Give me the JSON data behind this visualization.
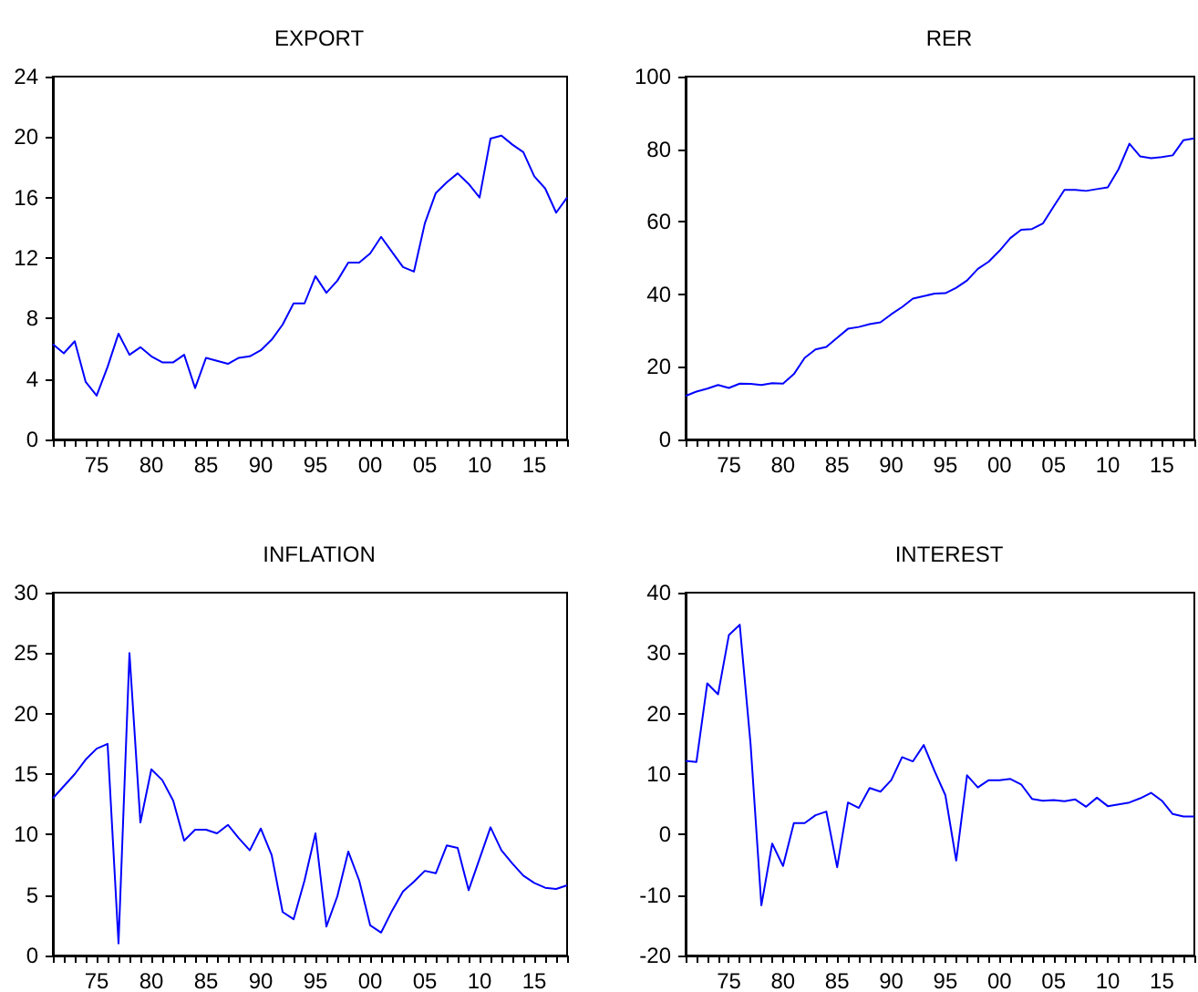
{
  "chart_data": [
    {
      "type": "line",
      "title": "EXPORT",
      "marker": "none",
      "xlim": [
        1971,
        2018
      ],
      "ylim": [
        0,
        24
      ],
      "yticks": [
        0,
        4,
        8,
        12,
        16,
        20,
        24
      ],
      "xticks": [
        {
          "value": 1971,
          "label": null
        },
        {
          "value": 1972,
          "label": null
        },
        {
          "value": 1973,
          "label": null
        },
        {
          "value": 1974,
          "label": null
        },
        {
          "value": 1975,
          "label": "75"
        },
        {
          "value": 1976,
          "label": null
        },
        {
          "value": 1977,
          "label": null
        },
        {
          "value": 1978,
          "label": null
        },
        {
          "value": 1979,
          "label": null
        },
        {
          "value": 1980,
          "label": "80"
        },
        {
          "value": 1981,
          "label": null
        },
        {
          "value": 1982,
          "label": null
        },
        {
          "value": 1983,
          "label": null
        },
        {
          "value": 1984,
          "label": null
        },
        {
          "value": 1985,
          "label": "85"
        },
        {
          "value": 1986,
          "label": null
        },
        {
          "value": 1987,
          "label": null
        },
        {
          "value": 1988,
          "label": null
        },
        {
          "value": 1989,
          "label": null
        },
        {
          "value": 1990,
          "label": "90"
        },
        {
          "value": 1991,
          "label": null
        },
        {
          "value": 1992,
          "label": null
        },
        {
          "value": 1993,
          "label": null
        },
        {
          "value": 1994,
          "label": null
        },
        {
          "value": 1995,
          "label": "95"
        },
        {
          "value": 1996,
          "label": null
        },
        {
          "value": 1997,
          "label": null
        },
        {
          "value": 1998,
          "label": null
        },
        {
          "value": 1999,
          "label": null
        },
        {
          "value": 2000,
          "label": "00"
        },
        {
          "value": 2001,
          "label": null
        },
        {
          "value": 2002,
          "label": null
        },
        {
          "value": 2003,
          "label": null
        },
        {
          "value": 2004,
          "label": null
        },
        {
          "value": 2005,
          "label": "05"
        },
        {
          "value": 2006,
          "label": null
        },
        {
          "value": 2007,
          "label": null
        },
        {
          "value": 2008,
          "label": null
        },
        {
          "value": 2009,
          "label": null
        },
        {
          "value": 2010,
          "label": "10"
        },
        {
          "value": 2011,
          "label": null
        },
        {
          "value": 2012,
          "label": null
        },
        {
          "value": 2013,
          "label": null
        },
        {
          "value": 2014,
          "label": null
        },
        {
          "value": 2015,
          "label": "15"
        },
        {
          "value": 2016,
          "label": null
        },
        {
          "value": 2017,
          "label": null
        },
        {
          "value": 2018,
          "label": null
        }
      ],
      "x": [
        1971,
        1972,
        1973,
        1974,
        1975,
        1976,
        1977,
        1978,
        1979,
        1980,
        1981,
        1982,
        1983,
        1984,
        1985,
        1986,
        1987,
        1988,
        1989,
        1990,
        1991,
        1992,
        1993,
        1994,
        1995,
        1996,
        1997,
        1998,
        1999,
        2000,
        2001,
        2002,
        2003,
        2004,
        2005,
        2006,
        2007,
        2008,
        2009,
        2010,
        2011,
        2012,
        2013,
        2014,
        2015,
        2016,
        2017,
        2018
      ],
      "series": [
        {
          "color": "#0000ff",
          "values": [
            6.3,
            5.7,
            6.5,
            3.8,
            2.9,
            4.8,
            7.0,
            5.6,
            6.1,
            5.5,
            5.1,
            5.1,
            5.6,
            3.4,
            5.4,
            5.2,
            5.0,
            5.4,
            5.5,
            5.9,
            6.6,
            7.6,
            9.0,
            9.0,
            10.8,
            9.7,
            10.5,
            11.7,
            11.7,
            12.3,
            13.4,
            12.4,
            11.4,
            11.1,
            14.3,
            16.3,
            17.0,
            17.6,
            16.9,
            16.0,
            19.9,
            20.1,
            19.5,
            19.0,
            17.4,
            16.6,
            15.0,
            16.0
          ]
        }
      ]
    },
    {
      "type": "line",
      "title": "RER",
      "marker": "none",
      "xlim": [
        1971,
        2018
      ],
      "ylim": [
        0,
        100
      ],
      "yticks": [
        0,
        20,
        40,
        60,
        80,
        100
      ],
      "xticks": [
        {
          "value": 1971,
          "label": null
        },
        {
          "value": 1972,
          "label": null
        },
        {
          "value": 1973,
          "label": null
        },
        {
          "value": 1974,
          "label": null
        },
        {
          "value": 1975,
          "label": "75"
        },
        {
          "value": 1976,
          "label": null
        },
        {
          "value": 1977,
          "label": null
        },
        {
          "value": 1978,
          "label": null
        },
        {
          "value": 1979,
          "label": null
        },
        {
          "value": 1980,
          "label": "80"
        },
        {
          "value": 1981,
          "label": null
        },
        {
          "value": 1982,
          "label": null
        },
        {
          "value": 1983,
          "label": null
        },
        {
          "value": 1984,
          "label": null
        },
        {
          "value": 1985,
          "label": "85"
        },
        {
          "value": 1986,
          "label": null
        },
        {
          "value": 1987,
          "label": null
        },
        {
          "value": 1988,
          "label": null
        },
        {
          "value": 1989,
          "label": null
        },
        {
          "value": 1990,
          "label": "90"
        },
        {
          "value": 1991,
          "label": null
        },
        {
          "value": 1992,
          "label": null
        },
        {
          "value": 1993,
          "label": null
        },
        {
          "value": 1994,
          "label": null
        },
        {
          "value": 1995,
          "label": "95"
        },
        {
          "value": 1996,
          "label": null
        },
        {
          "value": 1997,
          "label": null
        },
        {
          "value": 1998,
          "label": null
        },
        {
          "value": 1999,
          "label": null
        },
        {
          "value": 2000,
          "label": "00"
        },
        {
          "value": 2001,
          "label": null
        },
        {
          "value": 2002,
          "label": null
        },
        {
          "value": 2003,
          "label": null
        },
        {
          "value": 2004,
          "label": null
        },
        {
          "value": 2005,
          "label": "05"
        },
        {
          "value": 2006,
          "label": null
        },
        {
          "value": 2007,
          "label": null
        },
        {
          "value": 2008,
          "label": null
        },
        {
          "value": 2009,
          "label": null
        },
        {
          "value": 2010,
          "label": "10"
        },
        {
          "value": 2011,
          "label": null
        },
        {
          "value": 2012,
          "label": null
        },
        {
          "value": 2013,
          "label": null
        },
        {
          "value": 2014,
          "label": null
        },
        {
          "value": 2015,
          "label": "15"
        },
        {
          "value": 2016,
          "label": null
        },
        {
          "value": 2017,
          "label": null
        },
        {
          "value": 2018,
          "label": null
        }
      ],
      "x": [
        1971,
        1972,
        1973,
        1974,
        1975,
        1976,
        1977,
        1978,
        1979,
        1980,
        1981,
        1982,
        1983,
        1984,
        1985,
        1986,
        1987,
        1988,
        1989,
        1990,
        1991,
        1992,
        1993,
        1994,
        1995,
        1996,
        1997,
        1998,
        1999,
        2000,
        2001,
        2002,
        2003,
        2004,
        2005,
        2006,
        2007,
        2008,
        2009,
        2010,
        2011,
        2012,
        2013,
        2014,
        2015,
        2016,
        2017,
        2018
      ],
      "series": [
        {
          "color": "#0000ff",
          "values": [
            12,
            13.2,
            14,
            15,
            14.2,
            15.4,
            15.3,
            15,
            15.5,
            15.4,
            18,
            22.5,
            24.8,
            25.5,
            28,
            30.5,
            31,
            31.8,
            32.3,
            34.5,
            36.5,
            38.8,
            39.5,
            40.2,
            40.3,
            41.8,
            43.8,
            47,
            49,
            52,
            55.5,
            57.8,
            58,
            59.5,
            64.2,
            68.8,
            68.8,
            68.5,
            69,
            69.5,
            74.5,
            81.5,
            78,
            77.5,
            77.8,
            78.3,
            82.5,
            83
          ]
        }
      ]
    },
    {
      "type": "line",
      "title": "INFLATION",
      "marker": "none",
      "xlim": [
        1971,
        2018
      ],
      "ylim": [
        0,
        30
      ],
      "yticks": [
        0,
        5,
        10,
        15,
        20,
        25,
        30
      ],
      "xticks": [
        {
          "value": 1971,
          "label": null
        },
        {
          "value": 1972,
          "label": null
        },
        {
          "value": 1973,
          "label": null
        },
        {
          "value": 1974,
          "label": null
        },
        {
          "value": 1975,
          "label": "75"
        },
        {
          "value": 1976,
          "label": null
        },
        {
          "value": 1977,
          "label": null
        },
        {
          "value": 1978,
          "label": null
        },
        {
          "value": 1979,
          "label": null
        },
        {
          "value": 1980,
          "label": "80"
        },
        {
          "value": 1981,
          "label": null
        },
        {
          "value": 1982,
          "label": null
        },
        {
          "value": 1983,
          "label": null
        },
        {
          "value": 1984,
          "label": null
        },
        {
          "value": 1985,
          "label": "85"
        },
        {
          "value": 1986,
          "label": null
        },
        {
          "value": 1987,
          "label": null
        },
        {
          "value": 1988,
          "label": null
        },
        {
          "value": 1989,
          "label": null
        },
        {
          "value": 1990,
          "label": "90"
        },
        {
          "value": 1991,
          "label": null
        },
        {
          "value": 1992,
          "label": null
        },
        {
          "value": 1993,
          "label": null
        },
        {
          "value": 1994,
          "label": null
        },
        {
          "value": 1995,
          "label": "95"
        },
        {
          "value": 1996,
          "label": null
        },
        {
          "value": 1997,
          "label": null
        },
        {
          "value": 1998,
          "label": null
        },
        {
          "value": 1999,
          "label": null
        },
        {
          "value": 2000,
          "label": "00"
        },
        {
          "value": 2001,
          "label": null
        },
        {
          "value": 2002,
          "label": null
        },
        {
          "value": 2003,
          "label": null
        },
        {
          "value": 2004,
          "label": null
        },
        {
          "value": 2005,
          "label": "05"
        },
        {
          "value": 2006,
          "label": null
        },
        {
          "value": 2007,
          "label": null
        },
        {
          "value": 2008,
          "label": null
        },
        {
          "value": 2009,
          "label": null
        },
        {
          "value": 2010,
          "label": "10"
        },
        {
          "value": 2011,
          "label": null
        },
        {
          "value": 2012,
          "label": null
        },
        {
          "value": 2013,
          "label": null
        },
        {
          "value": 2014,
          "label": null
        },
        {
          "value": 2015,
          "label": "15"
        },
        {
          "value": 2016,
          "label": null
        },
        {
          "value": 2017,
          "label": null
        },
        {
          "value": 2018,
          "label": null
        }
      ],
      "x": [
        1971,
        1972,
        1973,
        1974,
        1975,
        1976,
        1977,
        1978,
        1979,
        1980,
        1981,
        1982,
        1983,
        1984,
        1985,
        1986,
        1987,
        1988,
        1989,
        1990,
        1991,
        1992,
        1993,
        1994,
        1995,
        1996,
        1997,
        1998,
        1999,
        2000,
        2001,
        2002,
        2003,
        2004,
        2005,
        2006,
        2007,
        2008,
        2009,
        2010,
        2011,
        2012,
        2013,
        2014,
        2015,
        2016,
        2017,
        2018
      ],
      "series": [
        {
          "color": "#0000ff",
          "values": [
            13.0,
            14.0,
            15.0,
            16.2,
            17.1,
            17.5,
            1.0,
            25.0,
            11.0,
            15.4,
            14.5,
            12.8,
            9.5,
            10.4,
            10.4,
            10.1,
            10.8,
            9.7,
            8.7,
            10.5,
            8.3,
            3.6,
            3.0,
            6.2,
            10.1,
            2.4,
            4.9,
            8.6,
            6.2,
            2.5,
            1.9,
            3.7,
            5.3,
            6.1,
            7.0,
            6.8,
            9.1,
            8.9,
            5.4,
            8.0,
            10.6,
            8.7,
            7.6,
            6.6,
            6.0,
            5.6,
            5.5,
            5.8
          ]
        }
      ]
    },
    {
      "type": "line",
      "title": "INTEREST",
      "marker": "none",
      "xlim": [
        1971,
        2018
      ],
      "ylim": [
        -20,
        40
      ],
      "yticks": [
        -20,
        -10,
        0,
        10,
        20,
        30,
        40
      ],
      "xticks": [
        {
          "value": 1971,
          "label": null
        },
        {
          "value": 1972,
          "label": null
        },
        {
          "value": 1973,
          "label": null
        },
        {
          "value": 1974,
          "label": null
        },
        {
          "value": 1975,
          "label": "75"
        },
        {
          "value": 1976,
          "label": null
        },
        {
          "value": 1977,
          "label": null
        },
        {
          "value": 1978,
          "label": null
        },
        {
          "value": 1979,
          "label": null
        },
        {
          "value": 1980,
          "label": "80"
        },
        {
          "value": 1981,
          "label": null
        },
        {
          "value": 1982,
          "label": null
        },
        {
          "value": 1983,
          "label": null
        },
        {
          "value": 1984,
          "label": null
        },
        {
          "value": 1985,
          "label": "85"
        },
        {
          "value": 1986,
          "label": null
        },
        {
          "value": 1987,
          "label": null
        },
        {
          "value": 1988,
          "label": null
        },
        {
          "value": 1989,
          "label": null
        },
        {
          "value": 1990,
          "label": "90"
        },
        {
          "value": 1991,
          "label": null
        },
        {
          "value": 1992,
          "label": null
        },
        {
          "value": 1993,
          "label": null
        },
        {
          "value": 1994,
          "label": null
        },
        {
          "value": 1995,
          "label": "95"
        },
        {
          "value": 1996,
          "label": null
        },
        {
          "value": 1997,
          "label": null
        },
        {
          "value": 1998,
          "label": null
        },
        {
          "value": 1999,
          "label": null
        },
        {
          "value": 2000,
          "label": "00"
        },
        {
          "value": 2001,
          "label": null
        },
        {
          "value": 2002,
          "label": null
        },
        {
          "value": 2003,
          "label": null
        },
        {
          "value": 2004,
          "label": null
        },
        {
          "value": 2005,
          "label": "05"
        },
        {
          "value": 2006,
          "label": null
        },
        {
          "value": 2007,
          "label": null
        },
        {
          "value": 2008,
          "label": null
        },
        {
          "value": 2009,
          "label": null
        },
        {
          "value": 2010,
          "label": "10"
        },
        {
          "value": 2011,
          "label": null
        },
        {
          "value": 2012,
          "label": null
        },
        {
          "value": 2013,
          "label": null
        },
        {
          "value": 2014,
          "label": null
        },
        {
          "value": 2015,
          "label": "15"
        },
        {
          "value": 2016,
          "label": null
        },
        {
          "value": 2017,
          "label": null
        },
        {
          "value": 2018,
          "label": null
        }
      ],
      "x": [
        1971,
        1972,
        1973,
        1974,
        1975,
        1976,
        1977,
        1978,
        1979,
        1980,
        1981,
        1982,
        1983,
        1984,
        1985,
        1986,
        1987,
        1988,
        1989,
        1990,
        1991,
        1992,
        1993,
        1994,
        1995,
        1996,
        1997,
        1998,
        1999,
        2000,
        2001,
        2002,
        2003,
        2004,
        2005,
        2006,
        2007,
        2008,
        2009,
        2010,
        2011,
        2012,
        2013,
        2014,
        2015,
        2016,
        2017,
        2018
      ],
      "series": [
        {
          "color": "#0000ff",
          "values": [
            12.2,
            12.0,
            25.0,
            23.2,
            33.0,
            34.7,
            15,
            -11.7,
            -1.5,
            -5.2,
            1.9,
            1.9,
            3.2,
            3.8,
            -5.4,
            5.3,
            4.4,
            7.7,
            7.1,
            9,
            12.8,
            12.1,
            14.8,
            10.5,
            6.5,
            -4.3,
            9.8,
            7.8,
            9,
            9,
            9.2,
            8.3,
            5.9,
            5.6,
            5.7,
            5.5,
            5.8,
            4.6,
            6.1,
            4.7,
            5,
            5.3,
            6,
            6.9,
            5.6,
            3.4,
            3.0,
            3.0
          ]
        }
      ]
    }
  ]
}
